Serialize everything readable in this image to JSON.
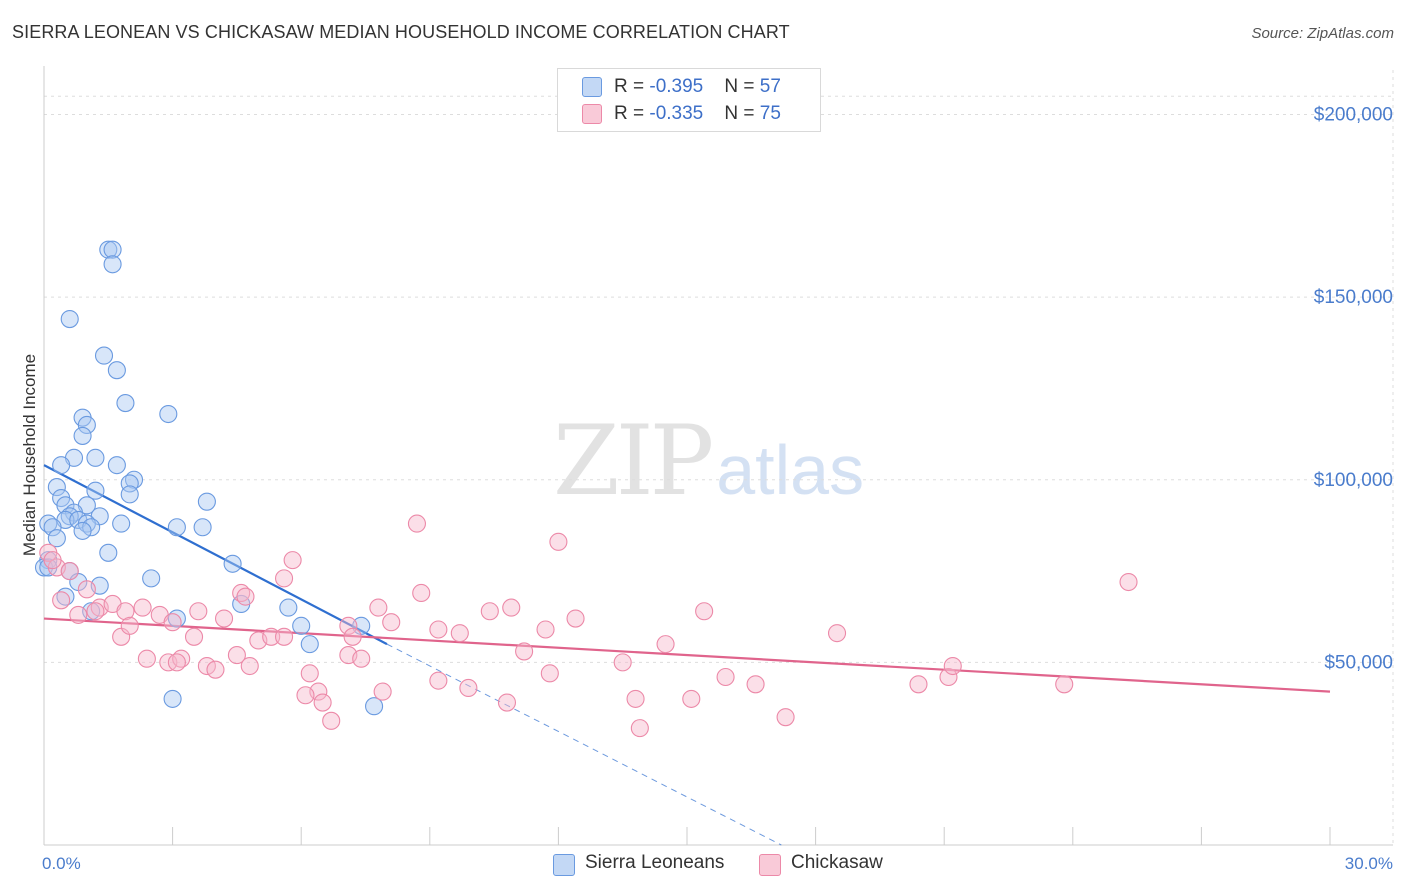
{
  "header": {
    "title": "SIERRA LEONEAN VS CHICKASAW MEDIAN HOUSEHOLD INCOME CORRELATION CHART",
    "source": "Source: ZipAtlas.com"
  },
  "watermark": {
    "zip": "ZIP",
    "atlas": "atlas"
  },
  "legend": {
    "rows": [
      {
        "r_label": "R = ",
        "r_value": "-0.395",
        "n_label": "N = ",
        "n_value": "57",
        "color": "#a9c8f2"
      },
      {
        "r_label": "R = ",
        "r_value": "-0.335",
        "n_label": "N = ",
        "n_value": "75",
        "color": "#f7b7cb"
      }
    ]
  },
  "chart_data": {
    "type": "scatter",
    "xlabel": "",
    "ylabel": "Median Household Income",
    "xlim": [
      0,
      30
    ],
    "ylim": [
      0,
      210000
    ],
    "x_tick_labels": [
      {
        "value": 0,
        "label": "0.0%"
      },
      {
        "value": 30,
        "label": "30.0%"
      }
    ],
    "y_tick_labels": [
      {
        "value": 50000,
        "label": "$50,000"
      },
      {
        "value": 100000,
        "label": "$100,000"
      },
      {
        "value": 150000,
        "label": "$150,000"
      },
      {
        "value": 200000,
        "label": "$200,000"
      }
    ],
    "grid": true,
    "legend_position": "bottom",
    "series": [
      {
        "name": "Sierra Leoneans",
        "color": "#a9c8f2",
        "edge": "#6a9ae0",
        "line_color": "#2f6fd0",
        "trend": {
          "x0": 0.0,
          "y0": 104000,
          "x1": 8.0,
          "y1": 55000,
          "dash_to_x": 17.2,
          "dash_to_y": 0
        },
        "points": [
          [
            1.5,
            163000
          ],
          [
            1.6,
            163000
          ],
          [
            1.6,
            159000
          ],
          [
            0.6,
            144000
          ],
          [
            1.4,
            134000
          ],
          [
            1.7,
            130000
          ],
          [
            1.9,
            121000
          ],
          [
            2.9,
            118000
          ],
          [
            0.9,
            117000
          ],
          [
            1.0,
            115000
          ],
          [
            0.9,
            112000
          ],
          [
            0.7,
            106000
          ],
          [
            1.2,
            106000
          ],
          [
            0.4,
            104000
          ],
          [
            1.7,
            104000
          ],
          [
            2.1,
            100000
          ],
          [
            2.0,
            99000
          ],
          [
            0.3,
            98000
          ],
          [
            1.2,
            97000
          ],
          [
            2.0,
            96000
          ],
          [
            0.4,
            95000
          ],
          [
            0.5,
            93000
          ],
          [
            1.0,
            93000
          ],
          [
            3.8,
            94000
          ],
          [
            0.7,
            91000
          ],
          [
            0.6,
            90000
          ],
          [
            0.5,
            89000
          ],
          [
            0.8,
            89000
          ],
          [
            1.3,
            90000
          ],
          [
            0.1,
            88000
          ],
          [
            0.2,
            87000
          ],
          [
            1.8,
            88000
          ],
          [
            1.0,
            88000
          ],
          [
            1.1,
            87000
          ],
          [
            0.9,
            86000
          ],
          [
            3.1,
            87000
          ],
          [
            3.7,
            87000
          ],
          [
            1.5,
            80000
          ],
          [
            0.1,
            78000
          ],
          [
            4.4,
            77000
          ],
          [
            0.0,
            76000
          ],
          [
            0.1,
            76000
          ],
          [
            0.6,
            75000
          ],
          [
            2.5,
            73000
          ],
          [
            0.8,
            72000
          ],
          [
            1.3,
            71000
          ],
          [
            0.5,
            68000
          ],
          [
            4.6,
            66000
          ],
          [
            5.7,
            65000
          ],
          [
            3.1,
            62000
          ],
          [
            6.0,
            60000
          ],
          [
            7.4,
            60000
          ],
          [
            6.2,
            55000
          ],
          [
            3.0,
            40000
          ],
          [
            7.7,
            38000
          ],
          [
            0.3,
            84000
          ],
          [
            1.1,
            64000
          ]
        ]
      },
      {
        "name": "Chickasaw",
        "color": "#f7b7cb",
        "edge": "#ec89a8",
        "line_color": "#e0648c",
        "trend": {
          "x0": 0.0,
          "y0": 62000,
          "x1": 30.0,
          "y1": 42000
        },
        "points": [
          [
            0.1,
            80000
          ],
          [
            0.3,
            76000
          ],
          [
            0.6,
            75000
          ],
          [
            1.0,
            70000
          ],
          [
            1.3,
            65000
          ],
          [
            1.6,
            66000
          ],
          [
            1.9,
            64000
          ],
          [
            2.3,
            65000
          ],
          [
            2.7,
            63000
          ],
          [
            3.0,
            61000
          ],
          [
            3.6,
            64000
          ],
          [
            4.2,
            62000
          ],
          [
            4.6,
            69000
          ],
          [
            5.0,
            56000
          ],
          [
            5.6,
            73000
          ],
          [
            5.8,
            78000
          ],
          [
            7.1,
            60000
          ],
          [
            7.8,
            65000
          ],
          [
            8.1,
            61000
          ],
          [
            8.7,
            88000
          ],
          [
            8.8,
            69000
          ],
          [
            9.2,
            59000
          ],
          [
            9.7,
            58000
          ],
          [
            10.4,
            64000
          ],
          [
            10.9,
            65000
          ],
          [
            11.2,
            53000
          ],
          [
            11.7,
            59000
          ],
          [
            11.8,
            47000
          ],
          [
            12.0,
            83000
          ],
          [
            12.4,
            62000
          ],
          [
            13.5,
            50000
          ],
          [
            13.8,
            40000
          ],
          [
            14.5,
            55000
          ],
          [
            15.1,
            40000
          ],
          [
            15.4,
            64000
          ],
          [
            15.9,
            46000
          ],
          [
            16.6,
            44000
          ],
          [
            17.3,
            35000
          ],
          [
            18.5,
            58000
          ],
          [
            20.4,
            44000
          ],
          [
            21.1,
            46000
          ],
          [
            21.2,
            49000
          ],
          [
            23.8,
            44000
          ],
          [
            25.3,
            72000
          ],
          [
            1.8,
            57000
          ],
          [
            2.4,
            51000
          ],
          [
            2.9,
            50000
          ],
          [
            3.2,
            51000
          ],
          [
            3.5,
            57000
          ],
          [
            3.8,
            49000
          ],
          [
            4.0,
            48000
          ],
          [
            4.5,
            52000
          ],
          [
            4.8,
            49000
          ],
          [
            5.3,
            57000
          ],
          [
            6.2,
            47000
          ],
          [
            6.4,
            42000
          ],
          [
            6.5,
            39000
          ],
          [
            6.7,
            34000
          ],
          [
            7.1,
            52000
          ],
          [
            7.4,
            51000
          ],
          [
            7.9,
            42000
          ],
          [
            9.2,
            45000
          ],
          [
            9.9,
            43000
          ],
          [
            10.8,
            39000
          ],
          [
            13.9,
            32000
          ],
          [
            0.8,
            63000
          ],
          [
            1.2,
            64000
          ],
          [
            0.4,
            67000
          ],
          [
            0.2,
            78000
          ],
          [
            2.0,
            60000
          ],
          [
            4.7,
            68000
          ],
          [
            6.1,
            41000
          ],
          [
            7.2,
            57000
          ],
          [
            5.6,
            57000
          ],
          [
            3.1,
            50000
          ]
        ]
      }
    ]
  }
}
